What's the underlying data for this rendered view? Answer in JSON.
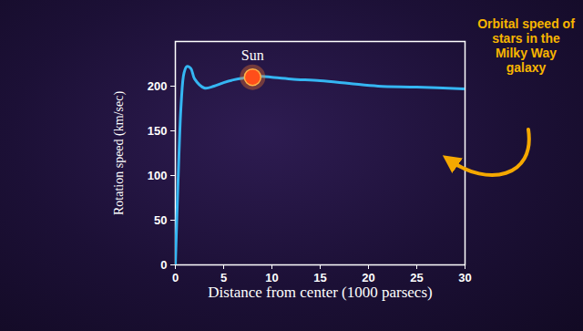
{
  "chart_data": {
    "type": "line",
    "xlabel": "Distance from center (1000 parsecs)",
    "ylabel": "Rotation speed (km/sec)",
    "x": [
      0,
      0.3,
      0.6,
      0.9,
      1.2,
      1.6,
      2,
      3,
      4,
      5,
      6,
      7,
      8,
      9,
      10,
      12,
      15,
      18,
      21,
      25,
      30
    ],
    "values": [
      0,
      100,
      180,
      215,
      222,
      220,
      208,
      198,
      200,
      204,
      207,
      209,
      210,
      211,
      210,
      208,
      206,
      203,
      200,
      199,
      197
    ],
    "color": "#35b6f2",
    "xlim": [
      0,
      30
    ],
    "xticks": [
      0,
      5,
      10,
      15,
      20,
      25,
      30
    ],
    "ylim": [
      0,
      250
    ],
    "yticks": [
      0,
      50,
      100,
      150,
      200
    ],
    "grid": false,
    "annotations": [
      {
        "text": "Sun",
        "x": 8,
        "y": 210
      },
      {
        "text": "Orbital speed of stars in the Milky Way galaxy"
      }
    ]
  }
}
